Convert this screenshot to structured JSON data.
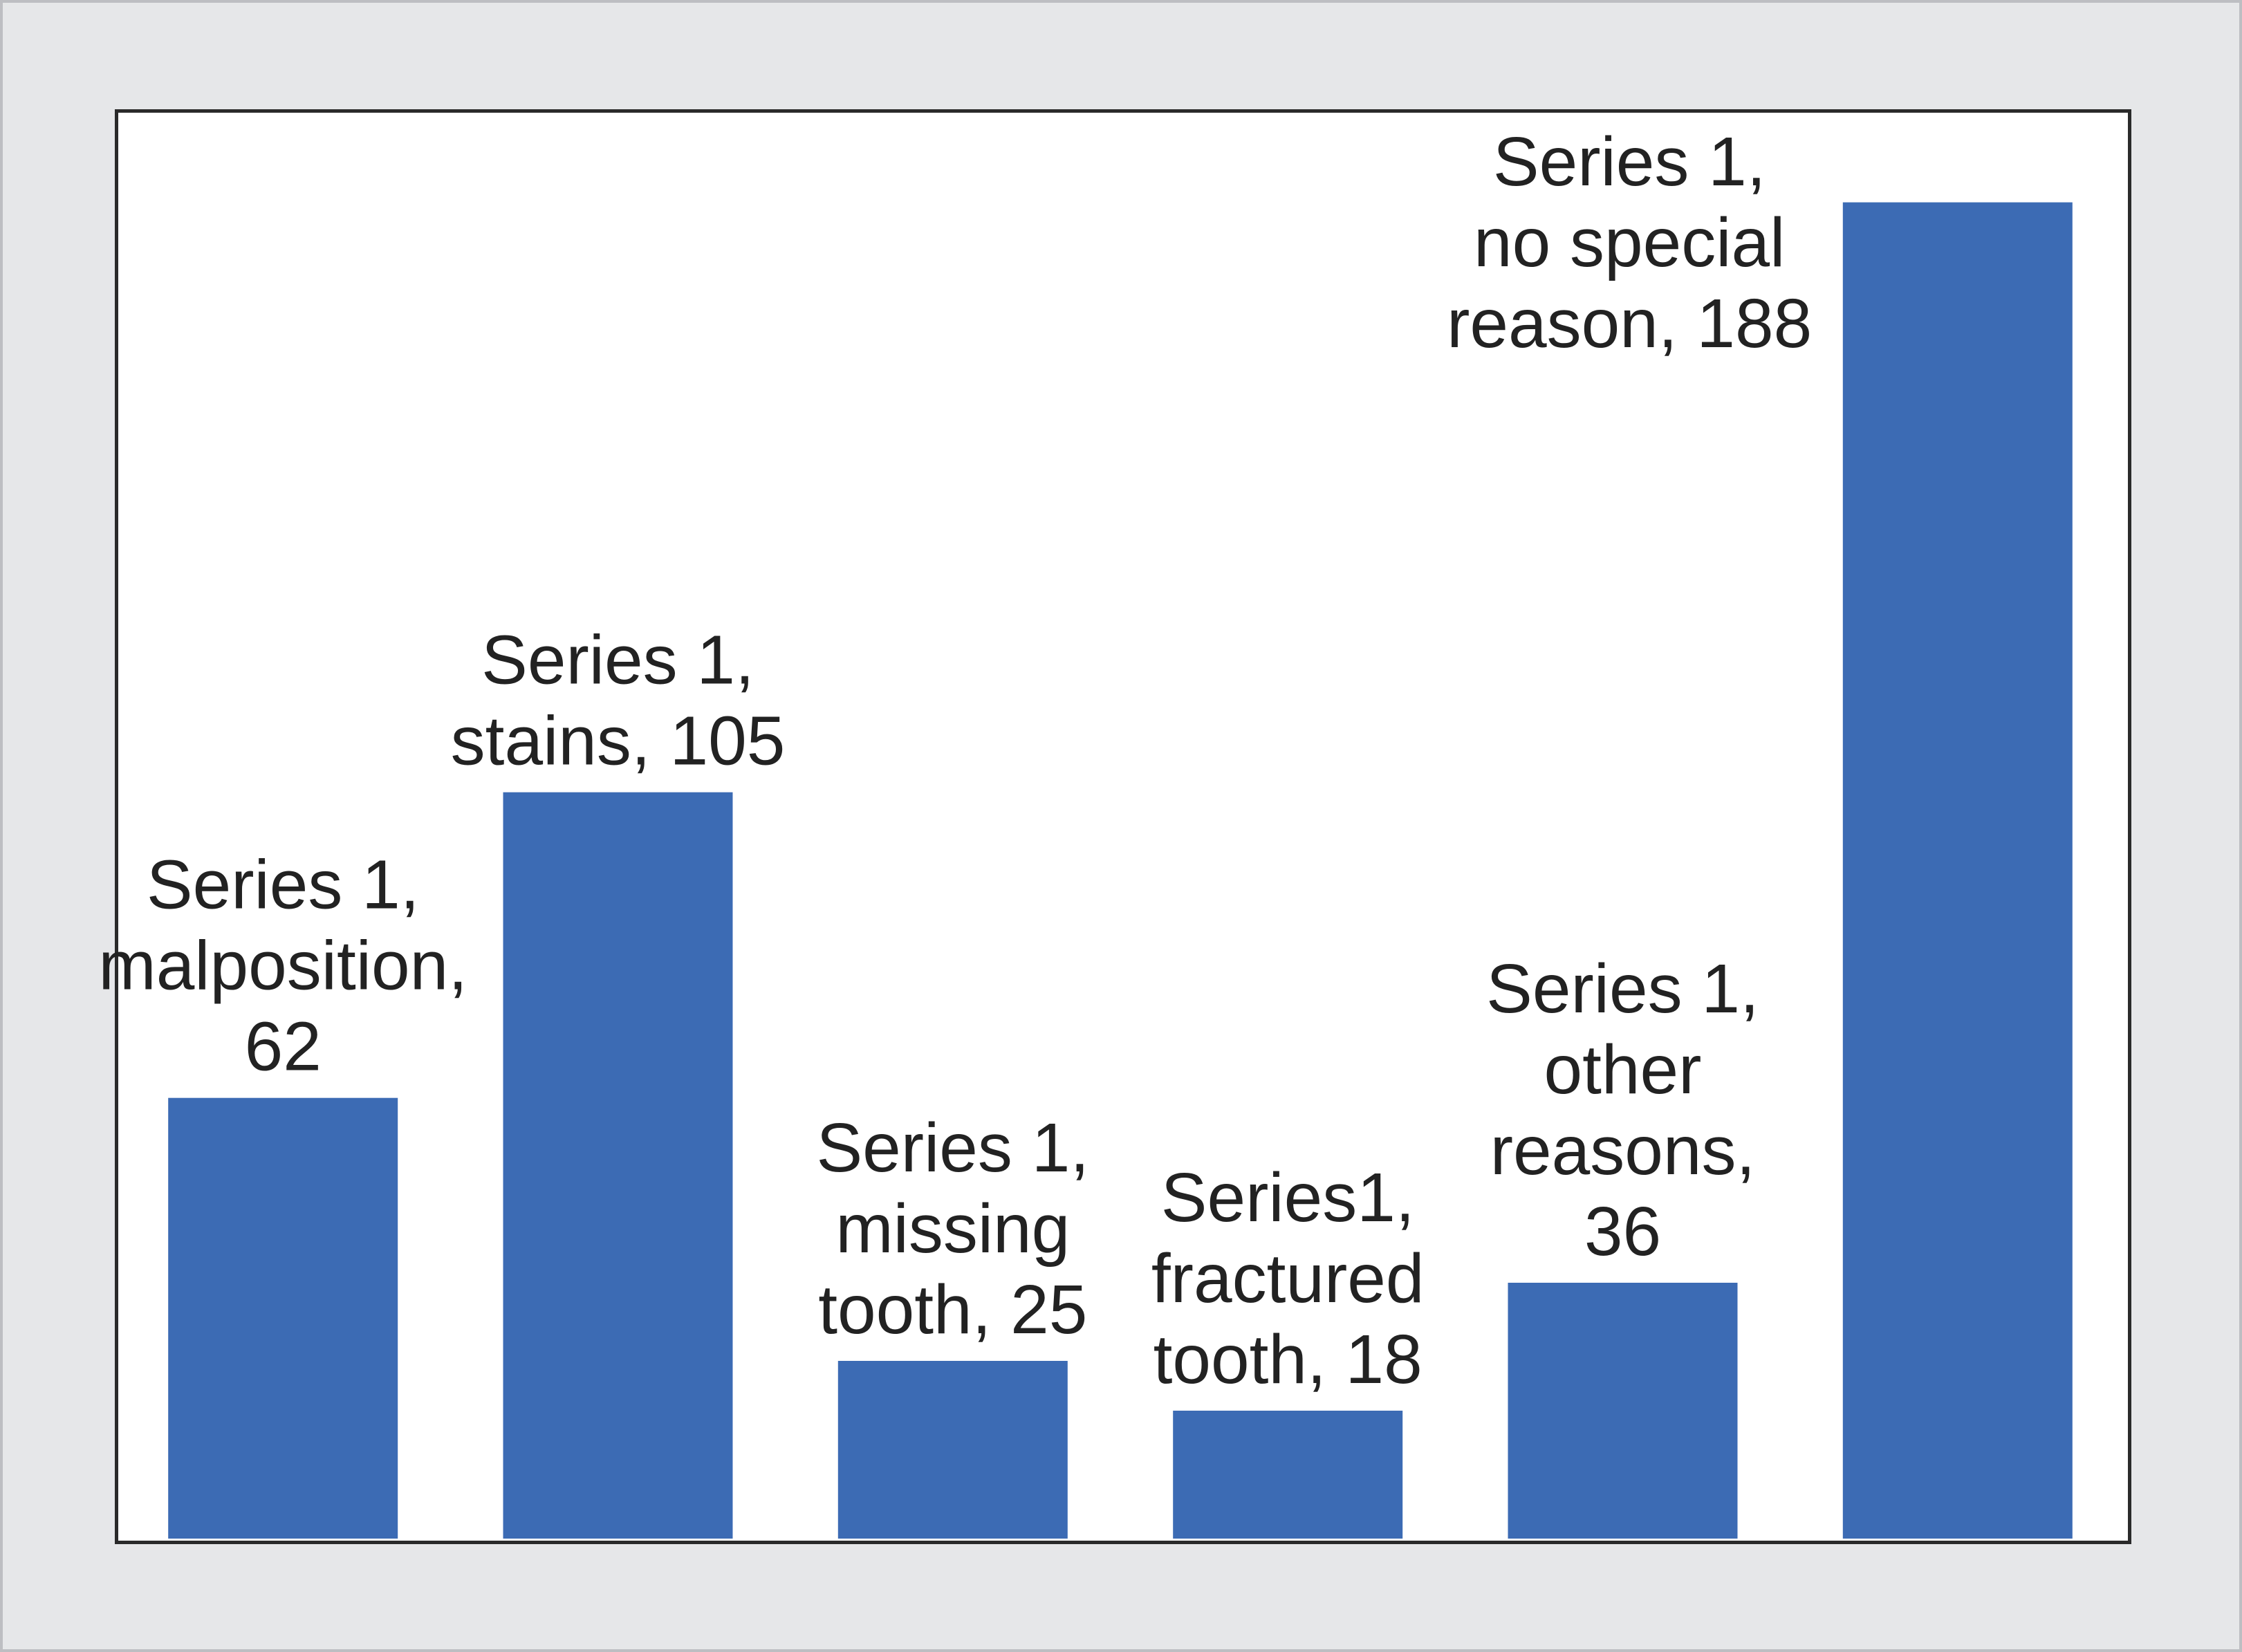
{
  "chart_data": {
    "type": "bar",
    "categories": [
      "malposition",
      "stains",
      "missing tooth",
      "fractured tooth",
      "other reasons",
      "no special reason"
    ],
    "series": [
      {
        "name": "Series 1",
        "values": [
          62,
          105,
          25,
          18,
          36,
          188
        ]
      }
    ],
    "data_labels": [
      [
        "Series 1,",
        "malposition,",
        "62"
      ],
      [
        "Series 1,",
        "stains, 105"
      ],
      [
        "Series 1,",
        "missing",
        "tooth, 25"
      ],
      [
        "Series1,",
        "fractured",
        "tooth, 18"
      ],
      [
        "Series 1,",
        "other",
        "reasons,",
        "36"
      ],
      [
        "Series 1,",
        "no special",
        "reason, 188"
      ]
    ],
    "ylim": [
      0,
      201
    ],
    "grid": false,
    "legend": "none",
    "bar_color": "#3c6bb4"
  }
}
